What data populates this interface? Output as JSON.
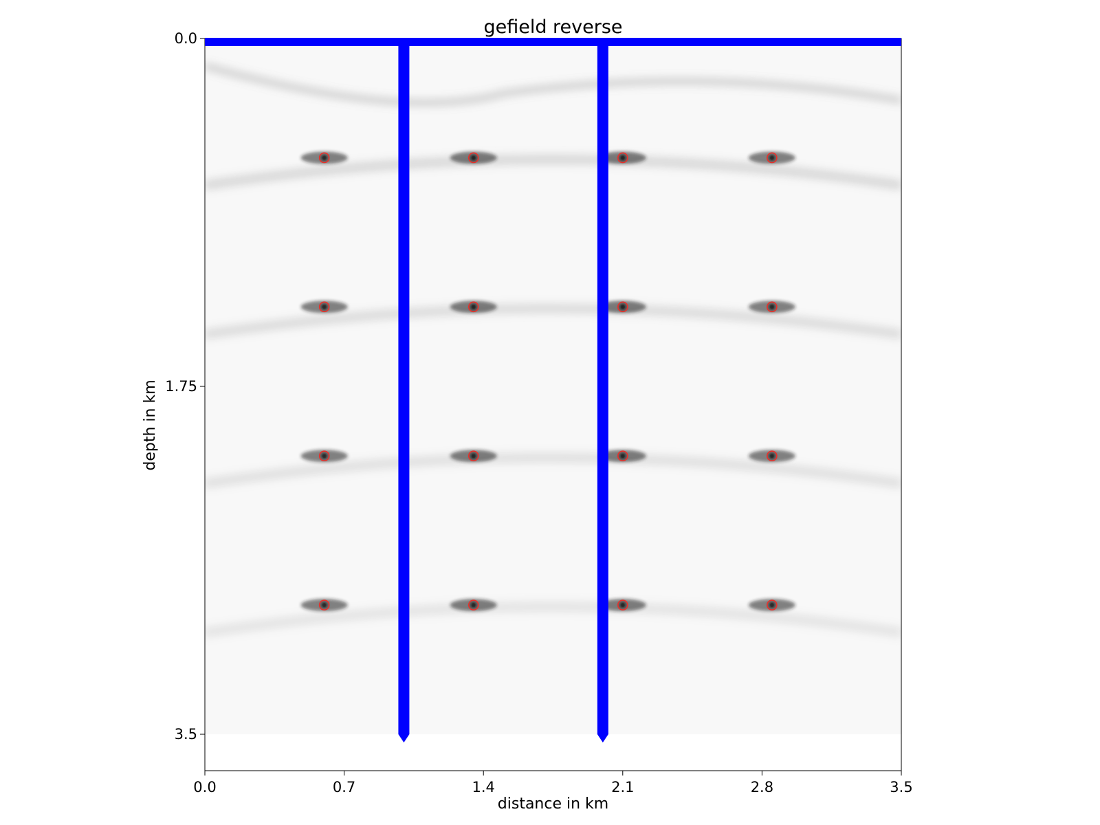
{
  "chart_data": {
    "type": "heatmap",
    "title": "gefield reverse",
    "xlabel": "distance in km",
    "ylabel": "depth in km",
    "xlim": [
      0.0,
      3.5
    ],
    "ylim": [
      0.0,
      3.5
    ],
    "y_inverted": true,
    "x_ticks": [
      "0.0",
      "0.7",
      "1.4",
      "2.1",
      "2.8",
      "3.5"
    ],
    "y_ticks": [
      "0.0",
      "1.75",
      "3.5"
    ],
    "colormap": "gray_r",
    "colors": {
      "wells": "#0000ff",
      "markers": "#e8302a"
    },
    "wells": [
      {
        "x": 1.0,
        "from_depth": 0.0,
        "to_depth": 3.5
      },
      {
        "x": 2.0,
        "from_depth": 0.0,
        "to_depth": 3.5
      }
    ],
    "surface_line": {
      "depth": 0.02,
      "from_x": 0.0,
      "to_x": 3.5
    },
    "markers": [
      {
        "x": 0.6,
        "y": 0.6
      },
      {
        "x": 1.35,
        "y": 0.6
      },
      {
        "x": 2.1,
        "y": 0.6
      },
      {
        "x": 2.85,
        "y": 0.6
      },
      {
        "x": 0.6,
        "y": 1.35
      },
      {
        "x": 1.35,
        "y": 1.35
      },
      {
        "x": 2.1,
        "y": 1.35
      },
      {
        "x": 2.85,
        "y": 1.35
      },
      {
        "x": 0.6,
        "y": 2.1
      },
      {
        "x": 1.35,
        "y": 2.1
      },
      {
        "x": 2.1,
        "y": 2.1
      },
      {
        "x": 2.85,
        "y": 2.1
      },
      {
        "x": 0.6,
        "y": 2.85
      },
      {
        "x": 1.35,
        "y": 2.85
      },
      {
        "x": 2.1,
        "y": 2.85
      },
      {
        "x": 2.85,
        "y": 2.85
      }
    ]
  }
}
